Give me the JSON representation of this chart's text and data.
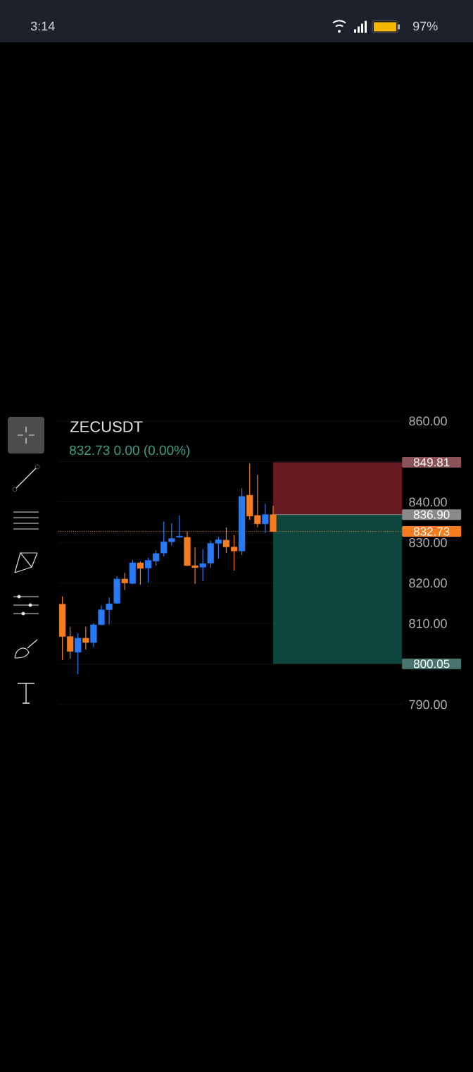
{
  "chart_data": {
    "type": "candlestick",
    "title": "ZECUSDT",
    "subtitle": "832.73 0.00 (0.00%)",
    "categories": [
      null,
      null,
      null,
      null,
      null,
      null,
      null,
      null,
      null,
      null,
      null,
      null,
      null,
      null,
      null,
      null,
      null,
      null,
      null,
      null,
      null,
      null,
      null,
      null,
      null,
      null,
      null,
      null,
      null,
      null,
      null,
      null,
      null,
      null,
      null,
      null,
      null,
      null,
      null,
      null,
      null,
      null,
      null,
      null
    ],
    "ohlc": [
      [
        814.8,
        816.7,
        801.0,
        806.8
      ],
      [
        806.8,
        809.2,
        801.3,
        803.1
      ],
      [
        802.9,
        807.6,
        797.5,
        806.4
      ],
      [
        806.4,
        809.2,
        803.6,
        805.3
      ],
      [
        805.3,
        810.1,
        804.2,
        809.7
      ],
      [
        809.7,
        814.5,
        809.6,
        813.4
      ],
      [
        813.4,
        816.4,
        809.7,
        814.9
      ],
      [
        815.0,
        821.7,
        814.9,
        821.0
      ],
      [
        821.0,
        822.5,
        818.3,
        820.0
      ],
      [
        819.9,
        825.7,
        819.7,
        825.0
      ],
      [
        825.0,
        825.3,
        819.6,
        823.6
      ],
      [
        823.7,
        826.2,
        820.1,
        825.6
      ],
      [
        825.4,
        828.1,
        824.3,
        827.3
      ],
      [
        827.4,
        835.2,
        826.6,
        830.2
      ],
      [
        830.2,
        834.8,
        829.3,
        831.0
      ],
      [
        831.3,
        836.7,
        831.2,
        831.6
      ],
      [
        831.3,
        832.7,
        824.2,
        824.3
      ],
      [
        824.3,
        828.8,
        819.8,
        823.8
      ],
      [
        823.9,
        828.4,
        820.5,
        824.8
      ],
      [
        824.9,
        830.5,
        823.8,
        829.8
      ],
      [
        829.8,
        831.4,
        826.0,
        830.7
      ],
      [
        830.6,
        833.7,
        827.4,
        828.9
      ],
      [
        828.9,
        831.8,
        823.1,
        827.9
      ],
      [
        827.9,
        843.4,
        826.9,
        841.4
      ],
      [
        841.7,
        849.5,
        835.6,
        836.5
      ],
      [
        836.7,
        846.7,
        833.8,
        834.6
      ],
      [
        834.6,
        839.6,
        832.3,
        836.9
      ],
      [
        836.9,
        839.1,
        832.6,
        832.7
      ],
      null,
      null,
      null,
      null,
      null,
      null,
      null,
      null,
      null,
      null,
      null,
      null,
      null,
      null,
      null,
      null
    ],
    "colors": [
      "#f57c1f",
      "#f57c1f",
      "#2a7af5",
      "#f57c1f",
      "#2a7af5",
      "#2a7af5",
      "#2a7af5",
      "#2a7af5",
      "#f57c1f",
      "#2a7af5",
      "#f57c1f",
      "#2a7af5",
      "#2a7af5",
      "#2a7af5",
      "#2a7af5",
      "#2a7af5",
      "#f57c1f",
      "#f57c1f",
      "#2a7af5",
      "#2a7af5",
      "#2a7af5",
      "#f57c1f",
      "#f57c1f",
      "#2a7af5",
      "#f57c1f",
      "#f57c1f",
      "#2a7af5",
      "#f57c1f",
      null,
      null,
      null,
      null,
      null,
      null,
      null,
      null,
      null,
      null,
      null,
      null,
      null,
      null,
      null,
      null
    ],
    "ylim": [
      790,
      860
    ],
    "yticks": [
      {
        "value": 790,
        "label": "790.00"
      },
      {
        "value": 800,
        "label": null
      },
      {
        "value": 810,
        "label": "810.00"
      },
      {
        "value": 820,
        "label": "820.00"
      },
      {
        "value": 830,
        "label": "830.00"
      },
      {
        "value": 840,
        "label": "840.00"
      },
      {
        "value": 850,
        "label": null
      },
      {
        "value": 860,
        "label": "860.00"
      }
    ],
    "grid": "y",
    "bands": [
      {
        "axis": "y",
        "from": 836.9,
        "to": 849.81,
        "label": "849.81",
        "color": "#651a21"
      },
      {
        "axis": "y",
        "from": 800.05,
        "to": 836.9,
        "label": "800.05",
        "color": "#0e463e"
      }
    ],
    "ref_lines": [
      {
        "axis": "y",
        "value": 836.9,
        "label": "836.90",
        "color": "#8a8a8a"
      },
      {
        "axis": "y",
        "value": 832.73,
        "label": "832.73",
        "color": "#f57c1f",
        "line_style": "dotted"
      }
    ],
    "annotations": [
      "3:14",
      "97%"
    ]
  }
}
